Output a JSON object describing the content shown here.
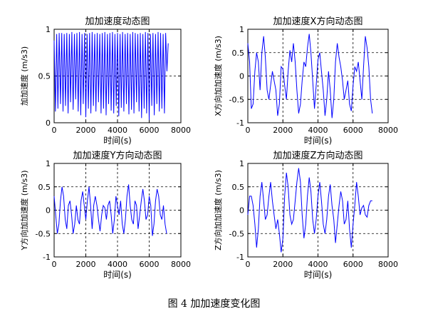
{
  "figure_caption": "图 4  加加速度变化图",
  "chart_data": [
    {
      "type": "line",
      "title": "加加速度动态图",
      "xlabel": "时间(s)",
      "ylabel": "加加速度 (m/s3)",
      "xlim": [
        0,
        8000
      ],
      "ylim": [
        0,
        1
      ],
      "xticks": [
        0,
        2000,
        4000,
        6000,
        8000
      ],
      "yticks": [
        0,
        0.5,
        1
      ],
      "grid": true,
      "color": "#0000ff",
      "series": [
        {
          "x": [
            0,
            80,
            160,
            240,
            320,
            400,
            480,
            560,
            640,
            720,
            800,
            880,
            960,
            1040,
            1120,
            1200,
            1280,
            1360,
            1440,
            1520,
            1600,
            1680,
            1760,
            1840,
            1920,
            2000,
            2080,
            2160,
            2240,
            2320,
            2400,
            2480,
            2560,
            2640,
            2720,
            2800,
            2880,
            2960,
            3040,
            3120,
            3200,
            3280,
            3360,
            3440,
            3520,
            3600,
            3680,
            3760,
            3840,
            3920,
            4000,
            4080,
            4160,
            4240,
            4320,
            4400,
            4480,
            4560,
            4640,
            4720,
            4800,
            4880,
            4960,
            5040,
            5120,
            5200,
            5280,
            5360,
            5440,
            5520,
            5600,
            5680,
            5760,
            5840,
            5920,
            6000,
            6080,
            6160,
            6240,
            6320,
            6400,
            6480,
            6560,
            6640,
            6720,
            6800,
            6880,
            6960,
            7040,
            7120,
            7200
          ],
          "y": [
            0.88,
            0.12,
            0.95,
            0.15,
            0.96,
            0.2,
            0.96,
            0.12,
            0.95,
            0.18,
            0.96,
            0.1,
            0.95,
            0.22,
            0.97,
            0.14,
            0.95,
            0.25,
            0.96,
            0.12,
            0.97,
            0.08,
            0.95,
            0.2,
            0.96,
            0.06,
            0.95,
            0.15,
            0.96,
            0.1,
            0.97,
            0.18,
            0.95,
            0.12,
            0.96,
            0.22,
            0.95,
            0.1,
            0.96,
            0.15,
            0.97,
            0.08,
            0.95,
            0.2,
            0.96,
            0.13,
            0.97,
            0.1,
            0.95,
            0.18,
            0.96,
            0.07,
            0.95,
            0.16,
            0.97,
            0.12,
            0.95,
            0.2,
            0.96,
            0.09,
            0.95,
            0.14,
            0.97,
            0.1,
            0.96,
            0.22,
            0.95,
            0.12,
            0.96,
            0.05,
            0.95,
            0.15,
            0.97,
            0.1,
            0.96,
            0.03,
            0.95,
            0.18,
            0.96,
            0.08,
            0.95,
            0.2,
            0.97,
            0.12,
            0.96,
            0.15,
            0.95,
            0.1,
            0.96,
            0.55,
            0.85
          ]
        }
      ]
    },
    {
      "type": "line",
      "title": "加加速度X方向动态图",
      "xlabel": "时间(s)",
      "ylabel": "X方向加加速度 (m/s3)",
      "xlim": [
        0,
        8000
      ],
      "ylim": [
        -1,
        1
      ],
      "xticks": [
        0,
        2000,
        4000,
        6000,
        8000
      ],
      "yticks": [
        -1,
        -0.5,
        0,
        0.5,
        1
      ],
      "grid": true,
      "color": "#0000ff",
      "series": [
        {
          "x": [
            0,
            100,
            200,
            300,
            400,
            500,
            600,
            700,
            800,
            900,
            1000,
            1100,
            1200,
            1300,
            1400,
            1500,
            1600,
            1700,
            1800,
            1900,
            2000,
            2100,
            2200,
            2300,
            2400,
            2500,
            2600,
            2700,
            2800,
            2900,
            3000,
            3100,
            3200,
            3300,
            3400,
            3500,
            3600,
            3700,
            3800,
            3900,
            4000,
            4100,
            4200,
            4300,
            4400,
            4500,
            4600,
            4700,
            4800,
            4900,
            5000,
            5100,
            5200,
            5300,
            5400,
            5500,
            5600,
            5700,
            5800,
            5900,
            6000,
            6100,
            6200,
            6300,
            6400,
            6500,
            6600,
            6700,
            6800,
            6900,
            7000,
            7100
          ],
          "y": [
            0.7,
            0.3,
            -0.7,
            -0.6,
            0.1,
            0.5,
            0.3,
            -0.3,
            0.5,
            0.85,
            0.4,
            -0.3,
            -0.5,
            -0.2,
            0.1,
            -0.1,
            -0.3,
            -0.85,
            -0.6,
            0.2,
            0.15,
            -0.2,
            -0.5,
            0.1,
            0.55,
            0.3,
            0.7,
            0.3,
            -0.3,
            -0.8,
            -0.6,
            -0.1,
            0.3,
            0.2,
            0.6,
            0.9,
            0.5,
            -0.1,
            -0.7,
            -0.2,
            0.35,
            0.5,
            0.1,
            -0.3,
            -0.85,
            -0.5,
            0.1,
            -0.3,
            -0.9,
            -0.5,
            0.3,
            0.7,
            0.4,
            0.2,
            -0.1,
            -0.5,
            -0.3,
            -0.1,
            -0.6,
            -0.75,
            -0.2,
            0.2,
            0.1,
            0.3,
            -0.1,
            -0.5,
            0.2,
            0.85,
            0.6,
            0.2,
            -0.5,
            -0.8
          ]
        }
      ]
    },
    {
      "type": "line",
      "title": "加加速度Y方向动态图",
      "xlabel": "时间(s)",
      "ylabel": "Y方向加加速度 (m/s3)",
      "xlim": [
        0,
        8000
      ],
      "ylim": [
        -1,
        1
      ],
      "xticks": [
        0,
        2000,
        4000,
        6000,
        8000
      ],
      "yticks": [
        -1,
        -0.5,
        0,
        0.5,
        1
      ],
      "grid": true,
      "color": "#0000ff",
      "series": [
        {
          "x": [
            0,
            100,
            200,
            300,
            400,
            500,
            600,
            700,
            800,
            900,
            1000,
            1100,
            1200,
            1300,
            1400,
            1500,
            1600,
            1700,
            1800,
            1900,
            2000,
            2100,
            2200,
            2300,
            2400,
            2500,
            2600,
            2700,
            2800,
            2900,
            3000,
            3100,
            3200,
            3300,
            3400,
            3500,
            3600,
            3700,
            3800,
            3900,
            4000,
            4100,
            4200,
            4300,
            4400,
            4500,
            4600,
            4700,
            4800,
            4900,
            5000,
            5100,
            5200,
            5300,
            5400,
            5500,
            5600,
            5700,
            5800,
            5900,
            6000,
            6100,
            6200,
            6300,
            6400,
            6500,
            6600,
            6700,
            6800,
            6900,
            7000,
            7100
          ],
          "y": [
            0.3,
            -0.1,
            -0.5,
            -0.3,
            0.2,
            0.5,
            0.3,
            -0.2,
            -0.4,
            0.1,
            0.2,
            -0.1,
            -0.5,
            -0.3,
            0.1,
            -0.2,
            -0.3,
            0.2,
            0.4,
            0.1,
            -0.2,
            0.2,
            0.5,
            0.1,
            -0.4,
            0.1,
            0.3,
            0.1,
            -0.2,
            -0.45,
            -0.1,
            0.1,
            0.05,
            -0.2,
            0.1,
            0.2,
            -0.1,
            -0.5,
            -0.2,
            0.3,
            0.1,
            -0.1,
            0.2,
            -0.3,
            -0.5,
            -0.2,
            0.3,
            0.55,
            0.1,
            -0.2,
            -0.3,
            0.2,
            0.1,
            -0.4,
            -0.1,
            0.2,
            0.45,
            0.2,
            -0.2,
            -0.1,
            0.3,
            0.1,
            -0.55,
            -0.3,
            0.2,
            0.45,
            0.3,
            -0.1,
            -0.2,
            0.1,
            -0.3,
            -0.5
          ]
        }
      ]
    },
    {
      "type": "line",
      "title": "加加速度Z方向动态图",
      "xlabel": "时间(s)",
      "ylabel": "Z方向加加速度 (m/s3)",
      "xlim": [
        0,
        8000
      ],
      "ylim": [
        -1,
        1
      ],
      "xticks": [
        0,
        2000,
        4000,
        6000,
        8000
      ],
      "yticks": [
        -1,
        -0.5,
        0,
        0.5,
        1
      ],
      "grid": true,
      "color": "#0000ff",
      "series": [
        {
          "x": [
            0,
            100,
            200,
            300,
            400,
            500,
            600,
            700,
            800,
            900,
            1000,
            1100,
            1200,
            1300,
            1400,
            1500,
            1600,
            1700,
            1800,
            1900,
            2000,
            2100,
            2200,
            2300,
            2400,
            2500,
            2600,
            2700,
            2800,
            2900,
            3000,
            3100,
            3200,
            3300,
            3400,
            3500,
            3600,
            3700,
            3800,
            3900,
            4000,
            4100,
            4200,
            4300,
            4400,
            4500,
            4600,
            4700,
            4800,
            4900,
            5000,
            5100,
            5200,
            5300,
            5400,
            5500,
            5600,
            5700,
            5800,
            5900,
            6000,
            6100,
            6200,
            6300,
            6400,
            6500,
            6600,
            6700,
            6800,
            6900,
            7000,
            7100
          ],
          "y": [
            -0.1,
            0.3,
            0.3,
            0.1,
            -0.3,
            -0.8,
            -0.4,
            0.3,
            0.6,
            0.2,
            -0.2,
            -0.1,
            0.3,
            0.6,
            0.2,
            -0.1,
            -0.4,
            -0.2,
            -0.5,
            -0.9,
            -0.6,
            0.3,
            0.8,
            0.5,
            -0.1,
            -0.3,
            -0.2,
            0.2,
            0.6,
            0.9,
            0.6,
            -0.1,
            -0.6,
            -0.3,
            0.3,
            0.7,
            0.4,
            -0.2,
            -0.5,
            -0.2,
            0.3,
            0.6,
            0.2,
            -0.3,
            -0.5,
            -0.2,
            0.3,
            0.55,
            0.1,
            -0.2,
            -0.7,
            -0.3,
            0.1,
            0.4,
            0.2,
            -0.3,
            -0.2,
            0.2,
            -0.4,
            -0.8,
            -0.3,
            0.1,
            0.6,
            0.3,
            -0.1,
            0.05,
            0.1,
            -0.1,
            -0.15,
            0.1,
            0.2,
            0.2
          ]
        }
      ]
    }
  ]
}
